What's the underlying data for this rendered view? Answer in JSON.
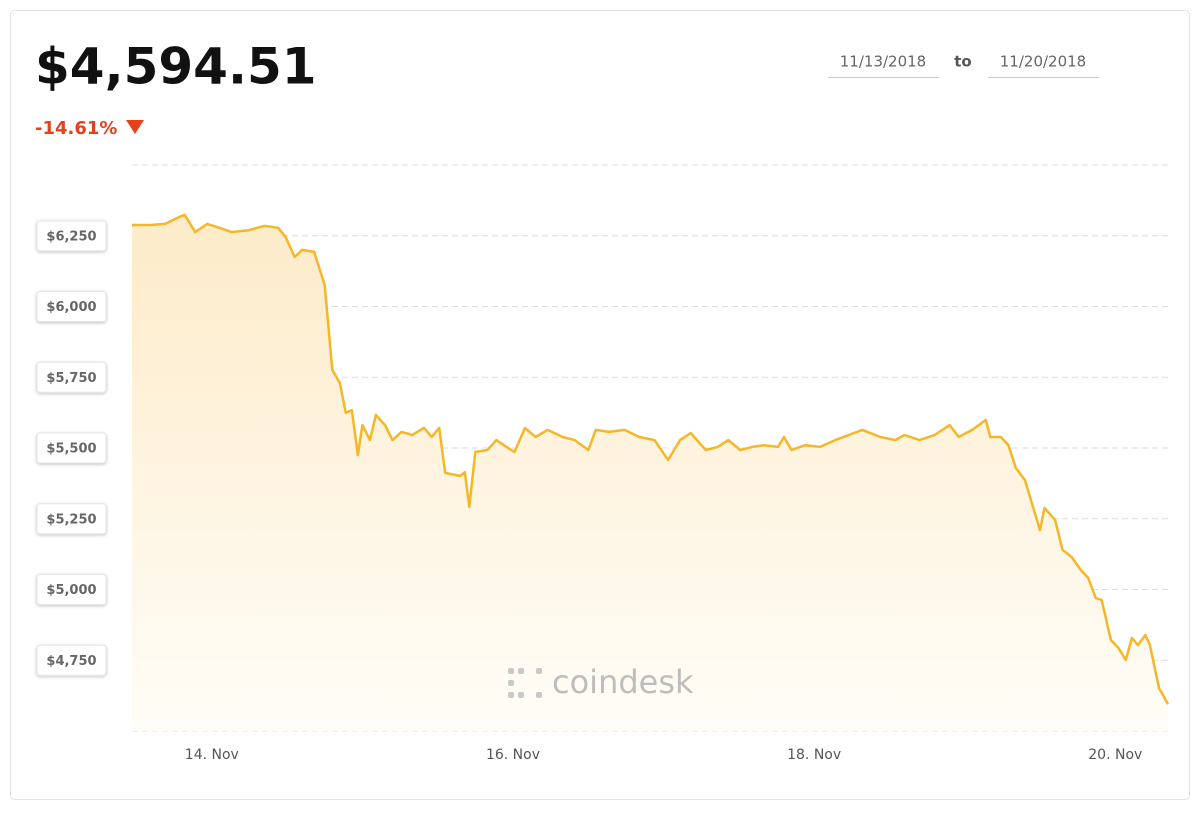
{
  "header": {
    "price": "$4,594.51",
    "change": "-14.61%"
  },
  "date_range": {
    "from": "11/13/2018",
    "joiner": "to",
    "to": "11/20/2018"
  },
  "watermark": "coindesk",
  "chart_data": {
    "type": "line",
    "color": "#f5b727",
    "grid": true,
    "x": [
      13.47,
      13.59,
      13.69,
      13.77,
      13.82,
      13.89,
      13.97,
      14.05,
      14.13,
      14.25,
      14.35,
      14.44,
      14.49,
      14.55,
      14.6,
      14.68,
      14.75,
      14.8,
      14.85,
      14.89,
      14.93,
      14.97,
      15.0,
      15.05,
      15.09,
      15.15,
      15.2,
      15.26,
      15.33,
      15.41,
      15.46,
      15.51,
      15.55,
      15.65,
      15.68,
      15.71,
      15.75,
      15.83,
      15.89,
      15.94,
      16.01,
      16.08,
      16.15,
      16.23,
      16.33,
      16.41,
      16.5,
      16.55,
      16.64,
      16.74,
      16.84,
      16.94,
      17.03,
      17.11,
      17.18,
      17.28,
      17.36,
      17.43,
      17.51,
      17.59,
      17.67,
      17.76,
      17.8,
      17.85,
      17.94,
      18.04,
      18.14,
      18.23,
      18.32,
      18.44,
      18.54,
      18.6,
      18.7,
      18.8,
      18.9,
      18.96,
      19.05,
      19.14,
      19.17,
      19.24,
      19.29,
      19.34,
      19.4,
      19.47,
      19.5,
      19.53,
      19.6,
      19.65,
      19.71,
      19.77,
      19.82,
      19.87,
      19.91,
      19.97,
      20.02,
      20.07,
      20.11,
      20.15,
      20.2,
      20.23,
      20.29,
      20.35
    ],
    "values": [
      6288,
      6288,
      6292,
      6313,
      6324,
      6263,
      6292,
      6278,
      6263,
      6270,
      6285,
      6278,
      6246,
      6175,
      6200,
      6193,
      6076,
      5776,
      5730,
      5624,
      5634,
      5475,
      5581,
      5528,
      5617,
      5581,
      5528,
      5557,
      5546,
      5571,
      5539,
      5571,
      5412,
      5401,
      5415,
      5292,
      5486,
      5493,
      5528,
      5510,
      5486,
      5571,
      5539,
      5564,
      5539,
      5528,
      5493,
      5564,
      5557,
      5564,
      5539,
      5528,
      5458,
      5528,
      5553,
      5493,
      5504,
      5528,
      5493,
      5504,
      5510,
      5504,
      5539,
      5493,
      5510,
      5504,
      5528,
      5546,
      5564,
      5539,
      5528,
      5546,
      5528,
      5546,
      5581,
      5539,
      5564,
      5599,
      5539,
      5539,
      5510,
      5429,
      5387,
      5263,
      5210,
      5288,
      5246,
      5140,
      5115,
      5069,
      5041,
      4970,
      4963,
      4822,
      4794,
      4751,
      4829,
      4804,
      4839,
      4804,
      4652,
      4595
    ],
    "xlim": [
      13.47,
      20.35
    ],
    "xticks": [
      {
        "value": 14,
        "label": "14. Nov"
      },
      {
        "value": 16,
        "label": "16. Nov"
      },
      {
        "value": 18,
        "label": "18. Nov"
      },
      {
        "value": 20,
        "label": "20. Nov"
      }
    ],
    "ylim": [
      4500,
      6500
    ],
    "yticks": [
      {
        "value": 4750,
        "label": "$4,750"
      },
      {
        "value": 5000,
        "label": "$5,000"
      },
      {
        "value": 5250,
        "label": "$5,250"
      },
      {
        "value": 5500,
        "label": "$5,500"
      },
      {
        "value": 5750,
        "label": "$5,750"
      },
      {
        "value": 6000,
        "label": "$6,000"
      },
      {
        "value": 6250,
        "label": "$6,250"
      }
    ]
  }
}
